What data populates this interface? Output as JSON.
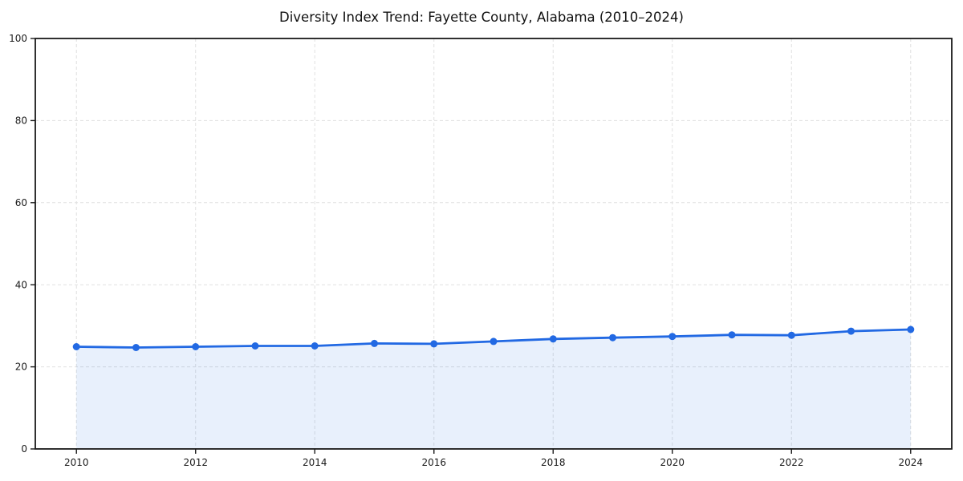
{
  "chart_data": {
    "type": "line",
    "title": "Diversity Index Trend: Fayette County, Alabama (2010–2024)",
    "xlabel": "",
    "ylabel": "",
    "x": [
      2010,
      2011,
      2012,
      2013,
      2014,
      2015,
      2016,
      2017,
      2018,
      2019,
      2020,
      2021,
      2022,
      2023,
      2024
    ],
    "series": [
      {
        "name": "Diversity Index",
        "values": [
          24.9,
          24.7,
          24.9,
          25.1,
          25.1,
          25.7,
          25.6,
          26.2,
          26.8,
          27.1,
          27.4,
          27.8,
          27.7,
          28.7,
          29.1
        ]
      }
    ],
    "xlim": [
      2009.31,
      2024.69
    ],
    "ylim": [
      0,
      100
    ],
    "xticks": [
      2010,
      2012,
      2014,
      2016,
      2018,
      2020,
      2022,
      2024
    ],
    "yticks": [
      0,
      20,
      40,
      60,
      80,
      100
    ],
    "grid": true,
    "legend": "none",
    "area_fill": true,
    "colors": {
      "line": "#2269e3",
      "marker": "#2269e3",
      "fill": "rgba(34,105,227,0.10)",
      "grid": "#e0e0e0",
      "spine": "#1a1a1a",
      "tick_label": "#1a1a1a",
      "title": "#111111",
      "background": "#ffffff"
    }
  }
}
